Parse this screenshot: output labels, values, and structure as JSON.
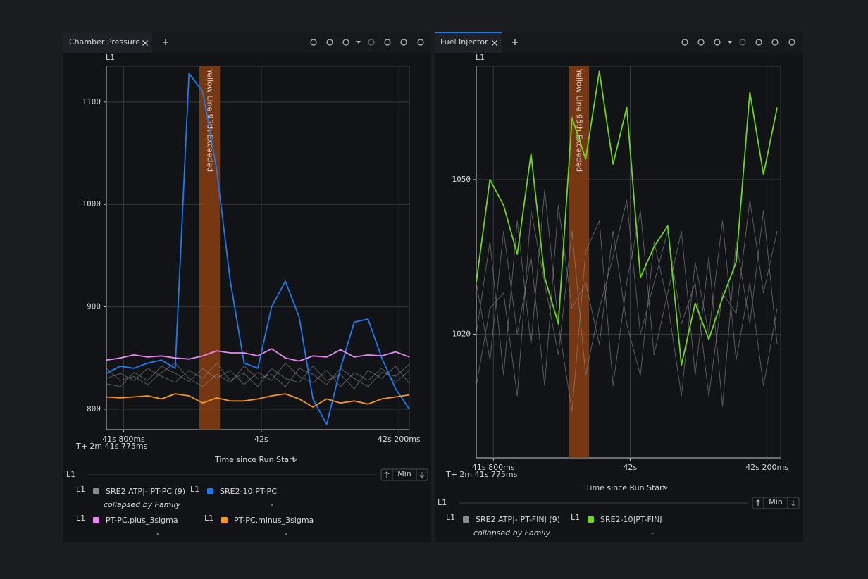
{
  "panels": [
    {
      "tab": "Chamber Pressure",
      "legend_title": "L1",
      "sort_label": "Min"
    },
    {
      "tab": "Fuel Injector",
      "legend_title": "L1",
      "sort_label": "Min"
    }
  ],
  "chart_data": [
    {
      "type": "line",
      "y_label": "L1",
      "x_label": "Time since Run Start",
      "x_origin_label": "T+ 2m 41s 775ms",
      "grid": true,
      "xlim": [
        41.775,
        42.215
      ],
      "xticks": [
        {
          "value": 41.8,
          "label": "41s 800ms"
        },
        {
          "value": 42.0,
          "label": "42s"
        },
        {
          "value": 42.2,
          "label": "42s 200ms"
        }
      ],
      "ylim": [
        780,
        1135
      ],
      "yticks": [
        800,
        900,
        1000,
        1100
      ],
      "annotations": [
        {
          "text": "Yellow Line 95th Exceeded",
          "x": [
            41.91,
            41.94
          ],
          "color": "#8a3e12"
        }
      ],
      "x": [
        41.775,
        41.795,
        41.815,
        41.835,
        41.855,
        41.875,
        41.895,
        41.915,
        41.935,
        41.955,
        41.975,
        41.995,
        42.015,
        42.035,
        42.055,
        42.075,
        42.095,
        42.115,
        42.135,
        42.155,
        42.175,
        42.195,
        42.215
      ],
      "series": [
        {
          "name": "SRE2 ATP|-|PT-PC (9)",
          "legend_axis": "L1",
          "legend_note": "collapsed by Family",
          "color": "#8a8a8a",
          "traces": [
            [
              830,
              835,
              828,
              840,
              832,
              826,
              838,
              830,
              845,
              828,
              835,
              822,
              840,
              830,
              826,
              842,
              828,
              834,
              820,
              838,
              830,
              842,
              825
            ],
            [
              825,
              822,
              836,
              828,
              842,
              835,
              827,
              840,
              830,
              838,
              824,
              836,
              828,
              845,
              832,
              826,
              838,
              822,
              836,
              828,
              840,
              826,
              838
            ],
            [
              840,
              828,
              832,
              824,
              836,
              845,
              830,
              822,
              834,
              826,
              842,
              830,
              834,
              822,
              840,
              834,
              824,
              840,
              830,
              822,
              836,
              832,
              844
            ]
          ]
        },
        {
          "name": "SRE2-10|PT-PC",
          "legend_axis": "L1",
          "legend_note": "-",
          "color": "#1a7cf0",
          "values": [
            835,
            842,
            840,
            845,
            848,
            840,
            1128,
            1110,
            1035,
            925,
            845,
            840,
            900,
            925,
            890,
            810,
            785,
            840,
            885,
            888,
            850,
            820,
            800
          ]
        },
        {
          "name": "PT-PC.plus_3sigma",
          "legend_axis": "L1",
          "legend_note": "-",
          "color": "#e58af0",
          "values": [
            848,
            850,
            853,
            851,
            852,
            850,
            849,
            852,
            857,
            855,
            855,
            852,
            859,
            850,
            847,
            852,
            851,
            858,
            851,
            853,
            852,
            856,
            851
          ]
        },
        {
          "name": "PT-PC.minus_3sigma",
          "legend_axis": "L1",
          "legend_note": "-",
          "color": "#f5961e",
          "values": [
            812,
            811,
            812,
            813,
            810,
            815,
            813,
            806,
            811,
            808,
            808,
            810,
            813,
            815,
            810,
            802,
            810,
            806,
            808,
            805,
            810,
            812,
            814
          ]
        }
      ]
    },
    {
      "type": "line",
      "y_label": "L1",
      "x_label": "Time since Run Start",
      "x_origin_label": "T+ 2m 41s 775ms",
      "grid": true,
      "xlim": [
        41.775,
        42.22
      ],
      "xticks": [
        {
          "value": 41.8,
          "label": "41s 800ms"
        },
        {
          "value": 42.0,
          "label": "42s"
        },
        {
          "value": 42.2,
          "label": "42s 200ms"
        }
      ],
      "ylim": [
        996,
        1072
      ],
      "yticks": [
        1020,
        1050
      ],
      "annotations": [
        {
          "text": "Yellow Line 95th Exceeded",
          "x": [
            41.91,
            41.94
          ],
          "color": "#8a3e12"
        }
      ],
      "x": [
        41.775,
        41.795,
        41.815,
        41.835,
        41.855,
        41.875,
        41.895,
        41.915,
        41.935,
        41.955,
        41.975,
        41.995,
        42.015,
        42.035,
        42.055,
        42.075,
        42.095,
        42.115,
        42.135,
        42.155,
        42.175,
        42.195,
        42.215
      ],
      "series": [
        {
          "name": "SRE2 ATP|-|PT-FINJ (9)",
          "legend_axis": "L1",
          "legend_note": "collapsed by Family",
          "color": "#8a8a8a",
          "traces": [
            [
              1030,
              1015,
              1040,
              1020,
              1035,
              1010,
              1045,
              1025,
              1030,
              1018,
              1040,
              1022,
              1012,
              1038,
              1026,
              1008,
              1034,
              1020,
              1042,
              1015,
              1030,
              1010,
              1025
            ],
            [
              1020,
              1038,
              1012,
              1042,
              1018,
              1048,
              1022,
              1005,
              1036,
              1042,
              1010,
              1030,
              1044,
              1016,
              1028,
              1040,
              1012,
              1035,
              1006,
              1038,
              1022,
              1044,
              1018
            ],
            [
              1010,
              1025,
              1028,
              1008,
              1044,
              1030,
              1016,
              1040,
              1012,
              1025,
              1035,
              1046,
              1020,
              1030,
              1040,
              1022,
              1030,
              1008,
              1028,
              1024,
              1046,
              1028,
              1040
            ]
          ]
        },
        {
          "name": "SRE2-10|PT-FINJ",
          "legend_axis": "L1",
          "legend_note": "-",
          "color": "#6fd61e",
          "values": [
            1030,
            1050,
            1045,
            1035.5,
            1055,
            1031,
            1022,
            1062,
            1054,
            1071,
            1053,
            1064,
            1031,
            1037,
            1041,
            1014,
            1026,
            1019,
            1027,
            1034,
            1067,
            1051,
            1064
          ]
        }
      ]
    }
  ]
}
